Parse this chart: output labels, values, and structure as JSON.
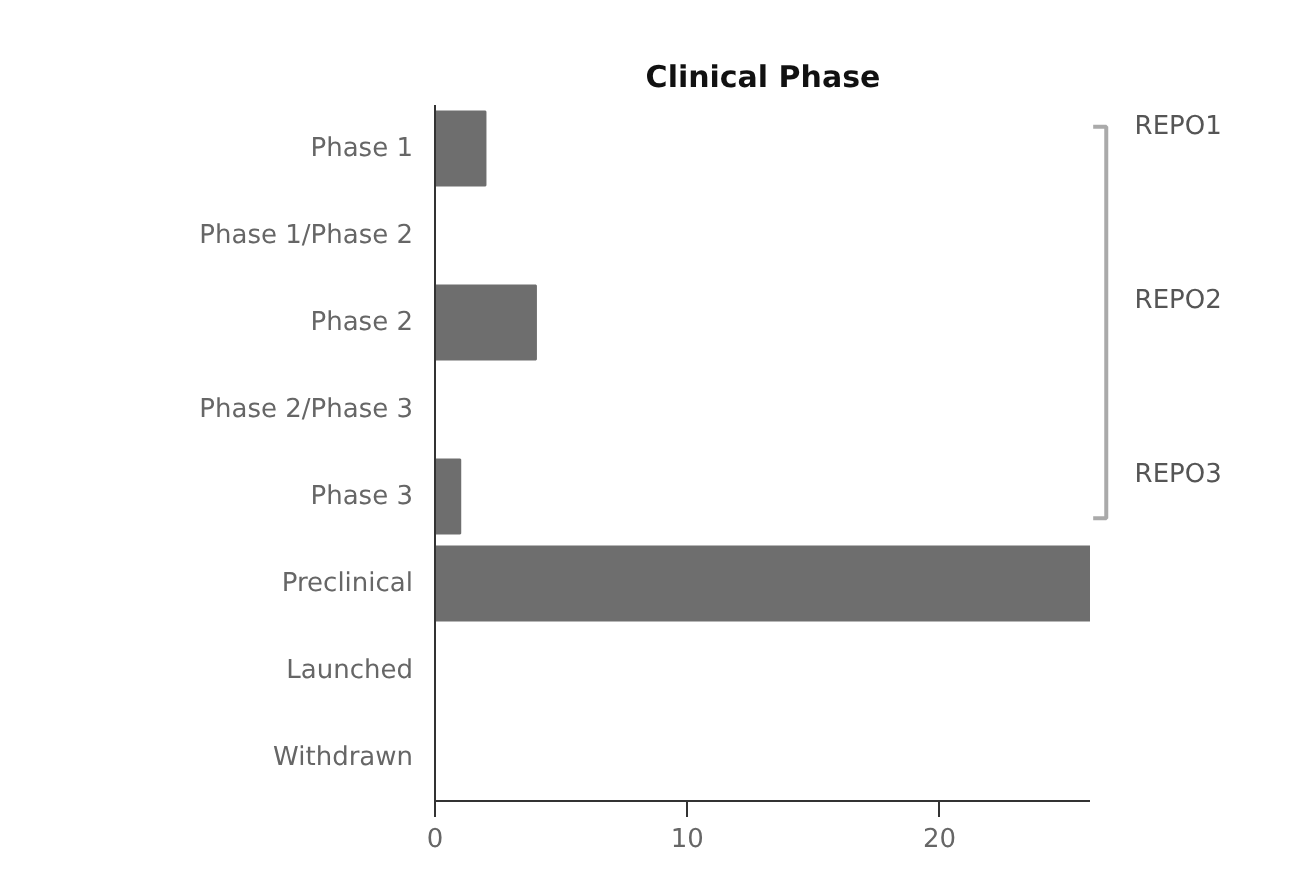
{
  "chart_data": {
    "type": "bar",
    "orientation": "horizontal",
    "title": "Clinical Phase",
    "categories": [
      "Phase 1",
      "Phase 1/Phase 2",
      "Phase 2",
      "Phase 2/Phase 3",
      "Phase 3",
      "Preclinical",
      "Launched",
      "Withdrawn"
    ],
    "values": [
      2,
      0,
      4,
      0,
      1,
      26,
      0,
      0
    ],
    "color": "#6e6e6e",
    "xlim": [
      0,
      26
    ],
    "xticks": [
      0,
      10,
      20,
      {
        "value": 26,
        "label": null
      }
    ],
    "grid": false,
    "annotations": [
      "REPO1",
      "REPO2",
      "REPO3"
    ]
  }
}
